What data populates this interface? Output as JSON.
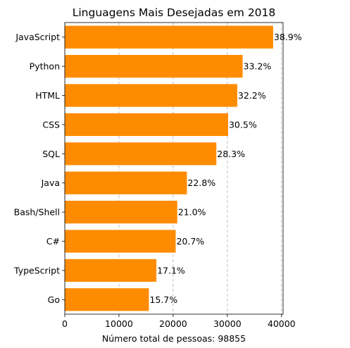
{
  "chart_data": {
    "type": "bar",
    "orientation": "horizontal",
    "title": "Linguagens Mais Desejadas em 2018",
    "xlabel": "Número total de pessoas: 98855",
    "ylabel": "",
    "categories": [
      "JavaScript",
      "Python",
      "HTML",
      "CSS",
      "SQL",
      "Java",
      "Bash/Shell",
      "C#",
      "TypeScript",
      "Go"
    ],
    "values": [
      38455,
      32820,
      31831,
      30151,
      27976,
      22539,
      20760,
      20463,
      16904,
      15520
    ],
    "data_labels": [
      "38.9%",
      "33.2%",
      "32.2%",
      "30.5%",
      "28.3%",
      "22.8%",
      "21.0%",
      "20.7%",
      "17.1%",
      "15.7%"
    ],
    "xlim": [
      0,
      40290
    ],
    "xticks": [
      0,
      10000,
      20000,
      30000,
      40000
    ],
    "xtick_labels": [
      "0",
      "10000",
      "20000",
      "30000",
      "40000"
    ],
    "grid": "vertical dashed",
    "legend": "none",
    "bar_color": "#ff8c00"
  }
}
